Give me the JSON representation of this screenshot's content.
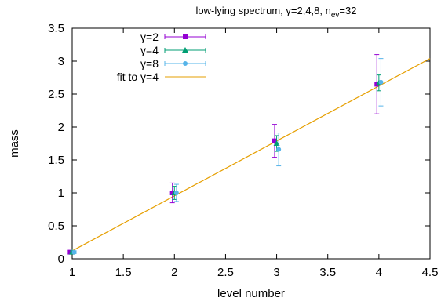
{
  "chart_data": {
    "type": "scatter",
    "title_main": "low-lying spectrum, γ=2,4,8, n",
    "title_sub": "ev",
    "title_tail": "=32",
    "xlabel": "level number",
    "ylabel": "mass",
    "xlim": [
      1,
      4.5
    ],
    "ylim": [
      0,
      3.5
    ],
    "xticks": [
      1,
      1.5,
      2,
      2.5,
      3,
      3.5,
      4,
      4.5
    ],
    "xtick_labels": [
      "1",
      "1.5",
      "2",
      "2.5",
      "3",
      "3.5",
      "4",
      "4.5"
    ],
    "yticks": [
      0,
      0.5,
      1,
      1.5,
      2,
      2.5,
      3,
      3.5
    ],
    "ytick_labels": [
      "0",
      "0.5",
      "1",
      "1.5",
      "2",
      "2.5",
      "3",
      "3.5"
    ],
    "grid": false,
    "legend_position": "top-left",
    "series": [
      {
        "name": "γ=2",
        "marker": "square",
        "color": "#9400d3",
        "points": [
          {
            "x": 0.98,
            "y": 0.1,
            "err": 0.02
          },
          {
            "x": 1.98,
            "y": 1.0,
            "err": 0.15
          },
          {
            "x": 2.98,
            "y": 1.79,
            "err": 0.25
          },
          {
            "x": 3.98,
            "y": 2.65,
            "err": 0.45
          }
        ]
      },
      {
        "name": "γ=4",
        "marker": "triangle",
        "color": "#009e73",
        "points": [
          {
            "x": 1.0,
            "y": 0.1,
            "err": 0.02
          },
          {
            "x": 2.0,
            "y": 1.0,
            "err": 0.1
          },
          {
            "x": 3.0,
            "y": 1.75,
            "err": 0.12
          },
          {
            "x": 4.0,
            "y": 2.67,
            "err": 0.12
          }
        ]
      },
      {
        "name": "γ=8",
        "marker": "circle",
        "color": "#56b4e9",
        "points": [
          {
            "x": 1.02,
            "y": 0.1,
            "err": 0.02
          },
          {
            "x": 2.02,
            "y": 1.0,
            "err": 0.13
          },
          {
            "x": 3.02,
            "y": 1.66,
            "err": 0.25
          },
          {
            "x": 4.02,
            "y": 2.68,
            "err": 0.36
          }
        ]
      }
    ],
    "fit": {
      "name": "fit to γ=4",
      "color": "#e69f00",
      "x": [
        1.0,
        4.5
      ],
      "y": [
        0.12,
        3.04
      ]
    }
  }
}
